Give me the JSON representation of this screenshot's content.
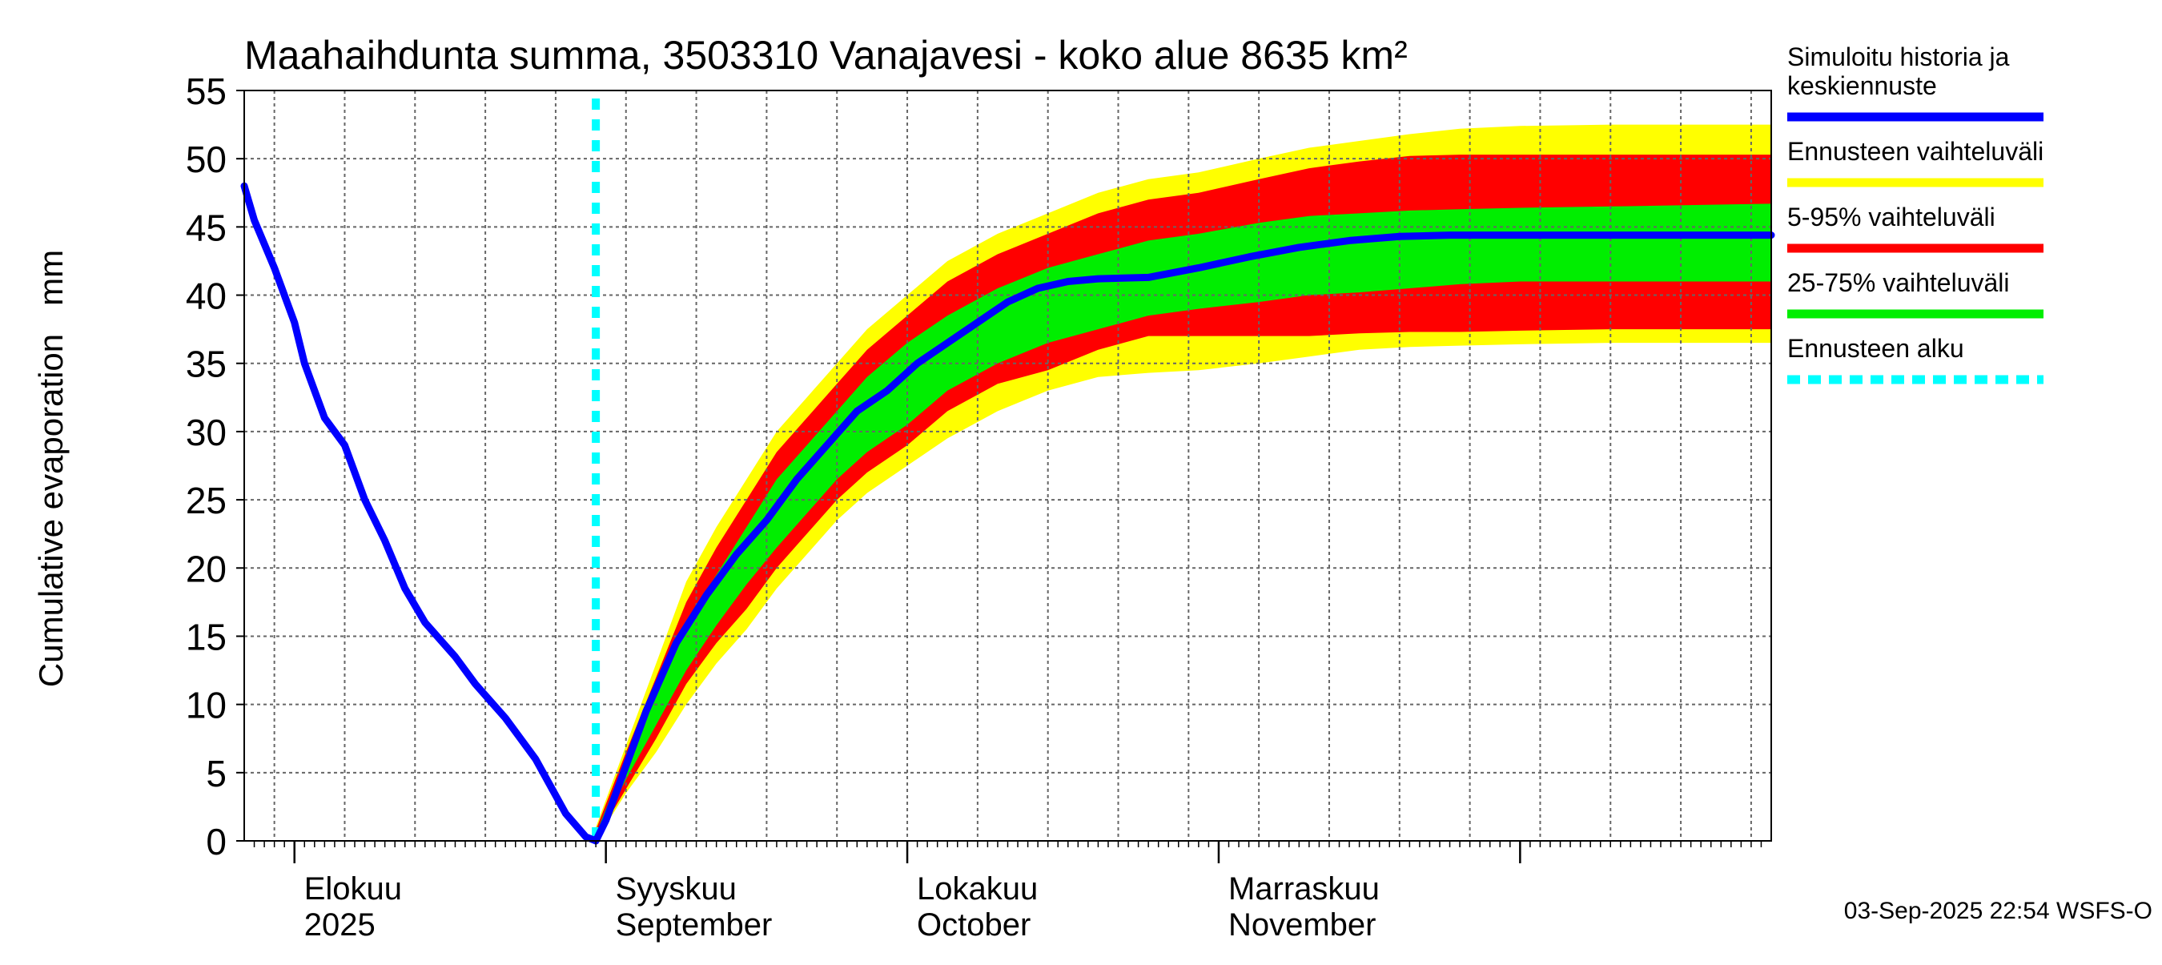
{
  "chart_data": {
    "type": "area",
    "title": "Maahaihdunta summa, 3503310 Vanajavesi - koko alue 8635 km²",
    "ylabel": "Cumulative evaporation   mm",
    "xlabel": "",
    "ylim": [
      0,
      55
    ],
    "yticks": [
      0,
      5,
      10,
      15,
      20,
      25,
      30,
      35,
      40,
      45,
      50,
      55
    ],
    "xlim": [
      "2025-07-27",
      "2025-12-26"
    ],
    "grid": true,
    "legend_position": "right",
    "month_labels": [
      {
        "date": "2025-08-01",
        "fi": "Elokuu",
        "en": "2025"
      },
      {
        "date": "2025-09-01",
        "fi": "Syyskuu",
        "en": "September"
      },
      {
        "date": "2025-10-01",
        "fi": "Lokakuu",
        "en": "October"
      },
      {
        "date": "2025-11-01",
        "fi": "Marraskuu",
        "en": "November"
      }
    ],
    "forecast_start": "2025-08-31",
    "legend": [
      {
        "label": "Simuloitu historia ja\nkeskiennuste",
        "color": "#0000ff",
        "style": "solid"
      },
      {
        "label": "Ennusteen vaihteluväli",
        "color": "#ffff00",
        "style": "solid"
      },
      {
        "label": "5-95% vaihteluväli",
        "color": "#ff0000",
        "style": "solid"
      },
      {
        "label": "25-75% vaihteluväli",
        "color": "#00ee00",
        "style": "solid"
      },
      {
        "label": "Ennusteen alku",
        "color": "#00ffff",
        "style": "dashed"
      }
    ],
    "series": [
      {
        "name": "Simuloitu historia ja keskiennuste",
        "color": "#0000ff",
        "x": [
          "2025-07-27",
          "2025-07-28",
          "2025-07-30",
          "2025-08-01",
          "2025-08-02",
          "2025-08-04",
          "2025-08-06",
          "2025-08-08",
          "2025-08-10",
          "2025-08-12",
          "2025-08-14",
          "2025-08-17",
          "2025-08-19",
          "2025-08-22",
          "2025-08-25",
          "2025-08-28",
          "2025-08-30",
          "2025-08-31",
          "2025-09-01",
          "2025-09-03",
          "2025-09-05",
          "2025-09-08",
          "2025-09-11",
          "2025-09-14",
          "2025-09-17",
          "2025-09-20",
          "2025-09-23",
          "2025-09-26",
          "2025-09-29",
          "2025-10-02",
          "2025-10-05",
          "2025-10-08",
          "2025-10-11",
          "2025-10-14",
          "2025-10-17",
          "2025-10-20",
          "2025-10-25",
          "2025-10-30",
          "2025-11-04",
          "2025-11-09",
          "2025-11-14",
          "2025-11-19",
          "2025-11-24",
          "2025-12-01",
          "2025-12-10",
          "2025-12-26"
        ],
        "values": [
          48.0,
          45.5,
          42.0,
          38.0,
          35.0,
          31.0,
          29.0,
          25.0,
          22.0,
          18.5,
          16.0,
          13.5,
          11.5,
          9.0,
          6.0,
          2.0,
          0.3,
          0.0,
          1.5,
          5.5,
          9.5,
          14.5,
          18.0,
          21.0,
          23.5,
          26.5,
          29.0,
          31.5,
          33.0,
          35.0,
          36.5,
          38.0,
          39.5,
          40.5,
          41.0,
          41.2,
          41.3,
          42.0,
          42.8,
          43.5,
          44.0,
          44.3,
          44.4,
          44.4,
          44.4,
          44.4
        ]
      },
      {
        "name": "Ennusteen vaihteluväli",
        "color": "#ffff00",
        "x": [
          "2025-08-31",
          "2025-09-03",
          "2025-09-06",
          "2025-09-09",
          "2025-09-12",
          "2025-09-15",
          "2025-09-18",
          "2025-09-21",
          "2025-09-24",
          "2025-09-27",
          "2025-10-01",
          "2025-10-05",
          "2025-10-10",
          "2025-10-15",
          "2025-10-20",
          "2025-10-25",
          "2025-10-30",
          "2025-11-05",
          "2025-11-10",
          "2025-11-15",
          "2025-11-20",
          "2025-11-25",
          "2025-12-01",
          "2025-12-10",
          "2025-12-26"
        ],
        "upper": [
          1.0,
          7.0,
          13.0,
          19.0,
          23.0,
          26.5,
          30.0,
          32.5,
          35.0,
          37.5,
          40.0,
          42.5,
          44.5,
          46.0,
          47.5,
          48.5,
          49.0,
          50.0,
          50.8,
          51.3,
          51.8,
          52.2,
          52.4,
          52.5,
          52.5
        ],
        "lower": [
          0.0,
          3.5,
          6.5,
          10.0,
          13.0,
          15.5,
          18.5,
          21.0,
          23.5,
          25.5,
          27.5,
          29.5,
          31.5,
          33.0,
          34.0,
          34.3,
          34.5,
          35.0,
          35.5,
          36.0,
          36.2,
          36.3,
          36.4,
          36.5,
          36.5
        ]
      },
      {
        "name": "5-95% vaihteluväli",
        "color": "#ff0000",
        "x": [
          "2025-08-31",
          "2025-09-03",
          "2025-09-06",
          "2025-09-09",
          "2025-09-12",
          "2025-09-15",
          "2025-09-18",
          "2025-09-21",
          "2025-09-24",
          "2025-09-27",
          "2025-10-01",
          "2025-10-05",
          "2025-10-10",
          "2025-10-15",
          "2025-10-20",
          "2025-10-25",
          "2025-10-30",
          "2025-11-05",
          "2025-11-10",
          "2025-11-15",
          "2025-11-20",
          "2025-11-25",
          "2025-12-01",
          "2025-12-10",
          "2025-12-26"
        ],
        "upper": [
          0.8,
          6.5,
          12.0,
          17.5,
          21.5,
          25.0,
          28.5,
          31.0,
          33.5,
          36.0,
          38.5,
          41.0,
          43.0,
          44.5,
          46.0,
          47.0,
          47.5,
          48.5,
          49.3,
          49.8,
          50.2,
          50.3,
          50.3,
          50.3,
          50.3
        ],
        "lower": [
          0.1,
          3.8,
          7.5,
          11.5,
          14.5,
          17.0,
          20.0,
          22.5,
          25.0,
          27.0,
          29.0,
          31.5,
          33.5,
          34.5,
          36.0,
          37.0,
          37.0,
          37.0,
          37.0,
          37.2,
          37.3,
          37.3,
          37.4,
          37.5,
          37.5
        ]
      },
      {
        "name": "25-75% vaihteluväli",
        "color": "#00ee00",
        "x": [
          "2025-08-31",
          "2025-09-03",
          "2025-09-06",
          "2025-09-09",
          "2025-09-12",
          "2025-09-15",
          "2025-09-18",
          "2025-09-21",
          "2025-09-24",
          "2025-09-27",
          "2025-10-01",
          "2025-10-05",
          "2025-10-10",
          "2025-10-15",
          "2025-10-20",
          "2025-10-25",
          "2025-10-30",
          "2025-11-05",
          "2025-11-10",
          "2025-11-15",
          "2025-11-20",
          "2025-11-25",
          "2025-12-01",
          "2025-12-10",
          "2025-12-26"
        ],
        "upper": [
          0.5,
          6.0,
          11.0,
          16.0,
          19.5,
          23.0,
          26.5,
          29.0,
          31.5,
          34.0,
          36.5,
          38.5,
          40.5,
          42.0,
          43.0,
          44.0,
          44.5,
          45.3,
          45.8,
          46.0,
          46.2,
          46.3,
          46.4,
          46.5,
          46.7
        ],
        "lower": [
          0.2,
          4.5,
          8.5,
          12.5,
          15.8,
          18.8,
          21.5,
          24.0,
          26.5,
          28.5,
          30.5,
          33.0,
          35.0,
          36.5,
          37.5,
          38.5,
          39.0,
          39.5,
          40.0,
          40.2,
          40.5,
          40.8,
          41.0,
          41.0,
          41.0
        ]
      }
    ],
    "timestamp": "03-Sep-2025 22:54 WSFS-O"
  }
}
